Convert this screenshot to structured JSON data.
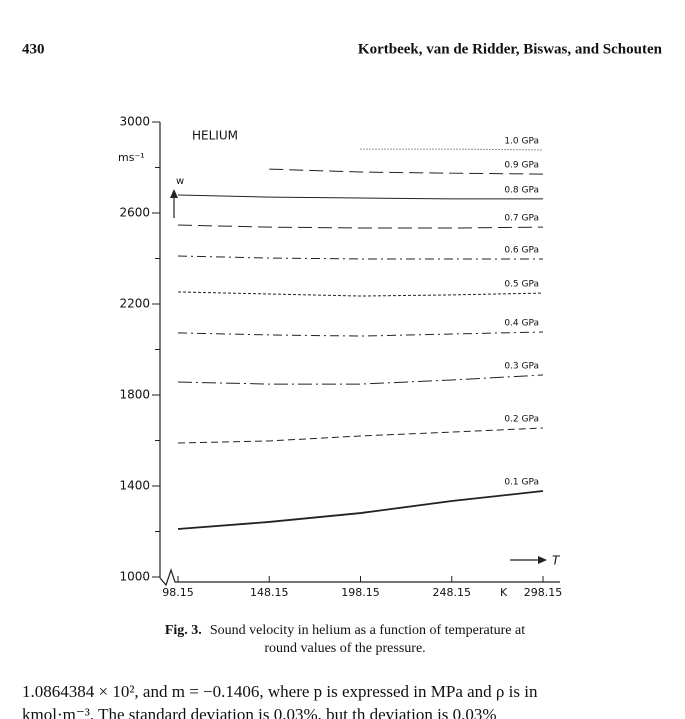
{
  "header": {
    "page_number": "430",
    "authors": "Kortbeek, van de Ridder, Biswas, and Schouten"
  },
  "chart_data": {
    "type": "line",
    "title": "HELIUM",
    "y_unit": "ms⁻¹",
    "y_arrow_label": "w",
    "x_arrow_label": "T",
    "x_unit": "K",
    "x": [
      98.15,
      148.15,
      198.15,
      248.15,
      298.15
    ],
    "xlim": [
      98.15,
      298.15
    ],
    "xticks": [
      98.15,
      148.15,
      198.15,
      248.15,
      298.15
    ],
    "ylim": [
      1000,
      3000
    ],
    "yticks": [
      1000,
      1400,
      1800,
      2200,
      2600,
      3000
    ],
    "yminor_ticks": [
      1200,
      1600,
      2000,
      2400,
      2800
    ],
    "color": "#222222",
    "series": [
      {
        "name": "0.1 GPa",
        "style": "solid-thick",
        "values": [
          1211,
          1242,
          1281,
          1334,
          1378
        ]
      },
      {
        "name": "0.2 GPa",
        "style": "dashed",
        "values": [
          1589,
          1598,
          1620,
          1637,
          1655
        ]
      },
      {
        "name": "0.3 GPa",
        "style": "longdashdot",
        "values": [
          1857,
          1848,
          1848,
          1866,
          1888
        ]
      },
      {
        "name": "0.4 GPa",
        "style": "dashdot",
        "values": [
          2073,
          2064,
          2059,
          2068,
          2077
        ]
      },
      {
        "name": "0.5 GPa",
        "style": "finedash",
        "values": [
          2253,
          2244,
          2235,
          2240,
          2248
        ]
      },
      {
        "name": "0.6 GPa",
        "style": "dashdot",
        "values": [
          2411,
          2402,
          2398,
          2398,
          2398
        ]
      },
      {
        "name": "0.7 GPa",
        "style": "longdash",
        "values": [
          2547,
          2538,
          2534,
          2534,
          2538
        ]
      },
      {
        "name": "0.8 GPa",
        "style": "solid",
        "values": [
          2679,
          2670,
          2666,
          2662,
          2662
        ]
      },
      {
        "name": "0.9 GPa",
        "style": "longdash",
        "values": [
          null,
          2793,
          2780,
          2775,
          2771
        ]
      },
      {
        "name": "1.0 GPa",
        "style": "dotted",
        "values": [
          null,
          null,
          2881,
          2881,
          2877
        ]
      }
    ]
  },
  "caption": {
    "label": "Fig. 3.",
    "lines": [
      "Sound velocity in helium as a function of temperature at",
      "round values of the pressure."
    ]
  },
  "body": {
    "lines": [
      "1.0864384 × 10², and m = −0.1406, where p is expressed in MPa and ρ is in",
      "kmol·m⁻³. The standard deviation is 0.03%, but th deviation is 0.03%"
    ]
  }
}
